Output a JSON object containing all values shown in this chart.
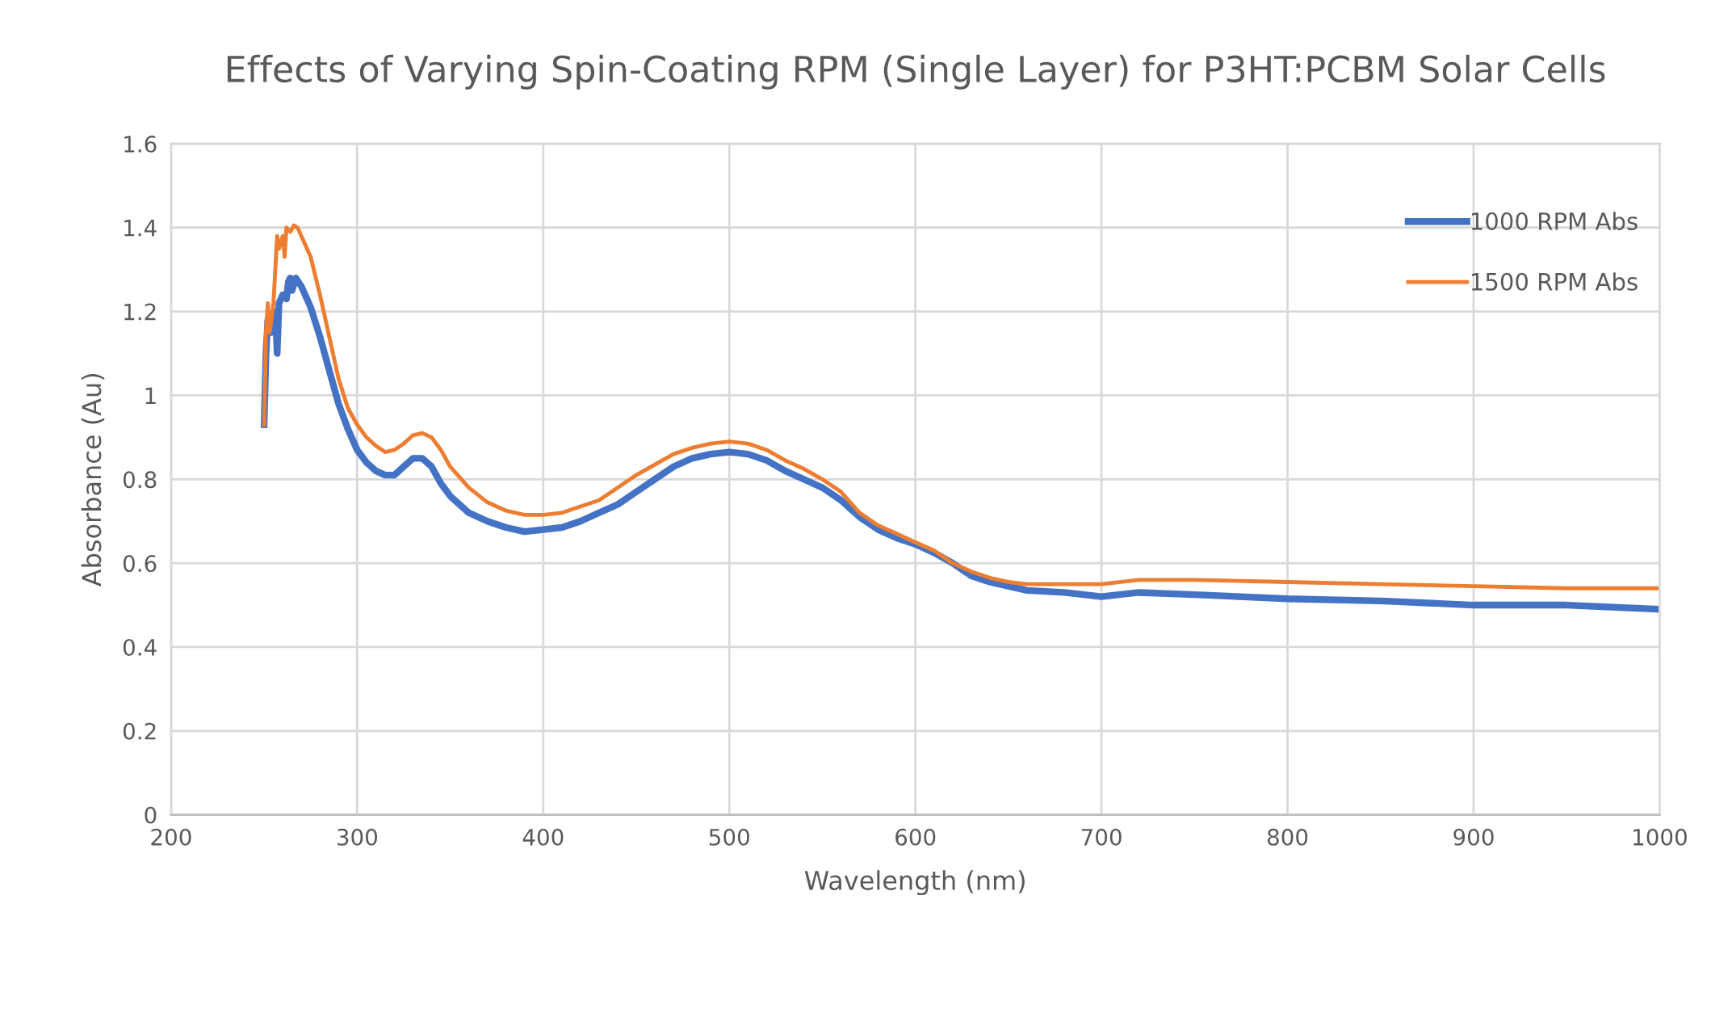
{
  "chart_data": {
    "type": "line",
    "title": "Effects of Varying Spin-Coating RPM (Single Layer) for P3HT:PCBM Solar Cells",
    "xlabel": "Wavelength (nm)",
    "ylabel": "Absorbance (Au)",
    "xlim": [
      200,
      1000
    ],
    "xticks": [
      200,
      300,
      400,
      500,
      600,
      700,
      800,
      900,
      1000
    ],
    "ylim": [
      0,
      1.6
    ],
    "yticks": [
      0,
      0.2,
      0.4,
      0.6,
      0.8,
      1,
      1.2,
      1.4,
      1.6
    ],
    "grid": true,
    "legend": "top right",
    "marker": "none",
    "line_style": "solid",
    "series": [
      {
        "name": "1000 RPM Abs",
        "color": "#4472c4",
        "x": [
          250,
          251,
          252,
          254,
          256,
          257,
          258,
          260,
          262,
          263,
          264,
          265,
          267,
          270,
          275,
          280,
          285,
          290,
          295,
          300,
          305,
          310,
          315,
          320,
          325,
          330,
          335,
          340,
          345,
          350,
          360,
          370,
          380,
          390,
          400,
          410,
          420,
          430,
          440,
          450,
          460,
          470,
          480,
          490,
          500,
          510,
          520,
          530,
          540,
          550,
          560,
          570,
          580,
          590,
          600,
          610,
          620,
          630,
          640,
          650,
          660,
          680,
          700,
          720,
          750,
          800,
          850,
          900,
          950,
          1000
        ],
        "values": [
          0.93,
          1.1,
          1.18,
          1.15,
          1.2,
          1.1,
          1.22,
          1.24,
          1.23,
          1.27,
          1.28,
          1.25,
          1.28,
          1.26,
          1.21,
          1.14,
          1.06,
          0.98,
          0.92,
          0.87,
          0.84,
          0.82,
          0.81,
          0.81,
          0.83,
          0.85,
          0.85,
          0.83,
          0.79,
          0.76,
          0.72,
          0.7,
          0.685,
          0.675,
          0.68,
          0.685,
          0.7,
          0.72,
          0.74,
          0.77,
          0.8,
          0.83,
          0.85,
          0.86,
          0.865,
          0.86,
          0.845,
          0.82,
          0.8,
          0.78,
          0.75,
          0.71,
          0.68,
          0.66,
          0.645,
          0.625,
          0.6,
          0.57,
          0.555,
          0.545,
          0.535,
          0.53,
          0.52,
          0.53,
          0.525,
          0.515,
          0.51,
          0.5,
          0.5,
          0.49
        ]
      },
      {
        "name": "1500 RPM Abs",
        "color": "#ed7d31",
        "x": [
          250,
          251,
          252,
          253,
          255,
          257,
          258,
          260,
          261,
          262,
          264,
          266,
          268,
          270,
          275,
          280,
          285,
          290,
          295,
          300,
          305,
          310,
          315,
          320,
          325,
          330,
          335,
          340,
          345,
          350,
          360,
          370,
          380,
          390,
          400,
          410,
          420,
          430,
          440,
          450,
          460,
          470,
          480,
          490,
          500,
          510,
          520,
          530,
          540,
          550,
          560,
          570,
          580,
          590,
          600,
          610,
          620,
          630,
          640,
          650,
          660,
          680,
          700,
          720,
          750,
          800,
          850,
          900,
          950,
          1000
        ],
        "values": [
          0.93,
          1.15,
          1.22,
          1.15,
          1.22,
          1.38,
          1.35,
          1.38,
          1.33,
          1.4,
          1.39,
          1.405,
          1.4,
          1.38,
          1.33,
          1.24,
          1.14,
          1.04,
          0.97,
          0.93,
          0.9,
          0.88,
          0.865,
          0.87,
          0.885,
          0.905,
          0.91,
          0.9,
          0.87,
          0.83,
          0.78,
          0.745,
          0.725,
          0.715,
          0.715,
          0.72,
          0.735,
          0.75,
          0.78,
          0.81,
          0.835,
          0.86,
          0.875,
          0.885,
          0.89,
          0.885,
          0.87,
          0.845,
          0.825,
          0.8,
          0.77,
          0.72,
          0.69,
          0.67,
          0.65,
          0.63,
          0.6,
          0.58,
          0.565,
          0.555,
          0.55,
          0.55,
          0.55,
          0.56,
          0.56,
          0.555,
          0.55,
          0.545,
          0.54,
          0.54
        ]
      }
    ]
  }
}
